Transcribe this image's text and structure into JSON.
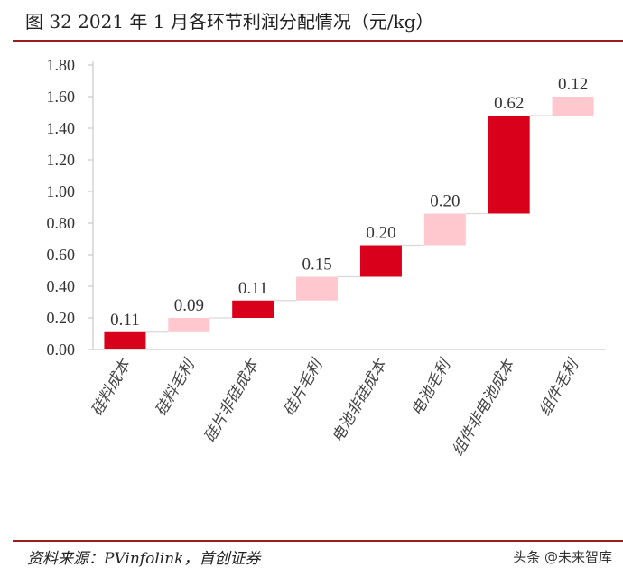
{
  "header": {
    "title": "图  32 2021 年 1 月各环节利润分配情况（元/kg）"
  },
  "footer": {
    "source": "资料来源：PVinfolink，首创证券",
    "watermark": "头条 @未来智库"
  },
  "colors": {
    "cost": "#d9001b",
    "profit": "#ffc7ce",
    "axis": "#bfbfbf",
    "connector": "#d9d9d9",
    "rule": "#9b1c1c"
  },
  "chart_data": {
    "type": "bar",
    "subtype": "waterfall",
    "categories": [
      "硅料成本",
      "硅料毛利",
      "硅片非硅成本",
      "硅片毛利",
      "电池非硅成本",
      "电池毛利",
      "组件非电池成本",
      "组件毛利"
    ],
    "values": [
      0.11,
      0.09,
      0.11,
      0.15,
      0.2,
      0.2,
      0.62,
      0.12
    ],
    "value_labels": [
      "0.11",
      "0.09",
      "0.11",
      "0.15",
      "0.20",
      "0.20",
      "0.62",
      "0.12"
    ],
    "kinds": [
      "cost",
      "profit",
      "cost",
      "profit",
      "cost",
      "profit",
      "cost",
      "profit"
    ],
    "ylim": [
      0,
      1.8
    ],
    "yticks": [
      "0.00",
      "0.20",
      "0.40",
      "0.60",
      "0.80",
      "1.00",
      "1.20",
      "1.40",
      "1.60",
      "1.80"
    ],
    "title": "",
    "xlabel": "",
    "ylabel": "",
    "grid": false,
    "legend": "none"
  }
}
